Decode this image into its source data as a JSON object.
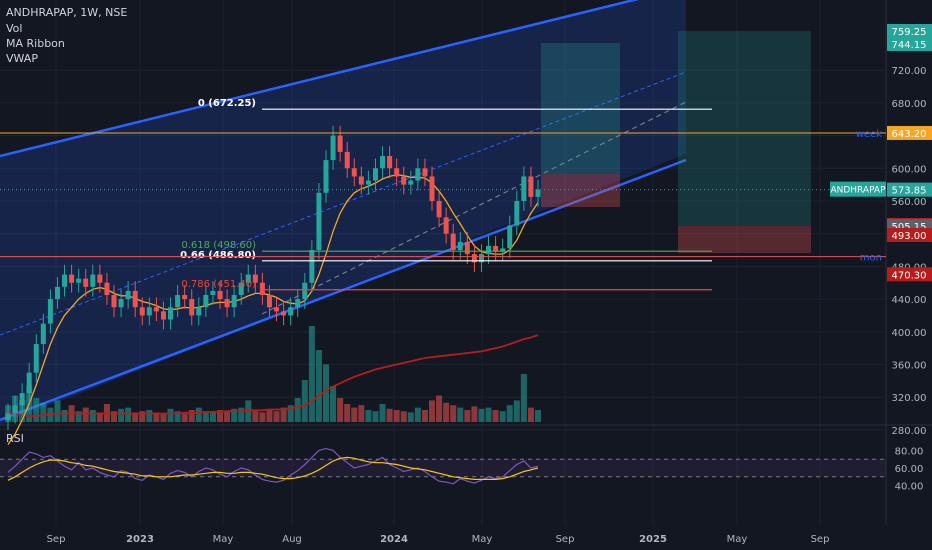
{
  "header": {
    "symbol_line": "ANDHRAPAP, 1W, NSE",
    "indicators": [
      "Vol",
      "MA Ribbon",
      "VWAP"
    ]
  },
  "rsi_pane": {
    "label": "RSI",
    "ticks": [
      80.0,
      60.0,
      40.0
    ],
    "upper_band": 70,
    "lower_band": 50
  },
  "colors": {
    "background": "#131722",
    "up": "#26a69a",
    "down": "#ef5350",
    "channel": "#2962ff",
    "ma": "#f5a623",
    "vwap_ribbon": "#b71c1c",
    "rsi": "#7e57c2"
  },
  "chart_data": {
    "type": "candlestick",
    "x_ticks": [
      "Sep",
      "2023",
      "May",
      "Aug",
      "2024",
      "May",
      "Sep",
      "2025",
      "May",
      "Sep"
    ],
    "y_ticks": [
      280.0,
      320.0,
      360.0,
      400.0,
      440.0,
      480.0,
      520.0,
      560.0,
      600.0,
      640.0,
      680.0,
      720.0
    ],
    "ylim": [
      255,
      775
    ],
    "last_price_label": "ANDHRAPAP",
    "price_labels": [
      {
        "text": "759.25",
        "value": 759.25,
        "color": "#26a69a"
      },
      {
        "text": "744.15",
        "value": 744.15,
        "color": "#26a69a"
      },
      {
        "text": "643.20",
        "value": 643.2,
        "color": "#f5a623"
      },
      {
        "text": "573.85",
        "value": 573.85,
        "color": "#26a69a"
      },
      {
        "text": "530.65",
        "value": 530.65,
        "color": "#b71c1c"
      },
      {
        "text": "505.15",
        "value": 505.15,
        "color": "#5d606b"
      },
      {
        "text": "493.00",
        "value": 493.0,
        "color": "#b71c1c"
      },
      {
        "text": "470.30",
        "value": 470.3,
        "color": "#b71c1c"
      }
    ],
    "fib_levels": [
      {
        "text": "0 (672.25)",
        "value": 672.25,
        "color": "#ffffff"
      },
      {
        "text": "0.618 (498.60)",
        "value": 498.6,
        "color": "#4caf50"
      },
      {
        "text": "0.66 (486.80)",
        "value": 486.8,
        "color": "#ffffff"
      },
      {
        "text": "0.786 (451.40)",
        "value": 451.4,
        "color": "#f44336"
      }
    ],
    "horizontal_lines": [
      {
        "text": "week",
        "value": 643.2,
        "color": "#f5a623"
      },
      {
        "text": "mon",
        "value": 492.0,
        "color": "#ef5350"
      }
    ],
    "close_series": [
      300,
      310,
      325,
      350,
      385,
      410,
      440,
      455,
      470,
      460,
      465,
      455,
      470,
      460,
      445,
      430,
      440,
      450,
      430,
      420,
      430,
      425,
      415,
      430,
      445,
      440,
      420,
      430,
      445,
      450,
      440,
      430,
      445,
      460,
      470,
      460,
      445,
      430,
      425,
      420,
      430,
      440,
      460,
      500,
      570,
      610,
      640,
      620,
      600,
      590,
      580,
      585,
      600,
      615,
      600,
      590,
      580,
      585,
      600,
      590,
      560,
      540,
      520,
      500,
      510,
      495,
      485,
      495,
      505,
      498,
      502,
      530,
      560,
      590,
      565,
      574
    ],
    "ma_series": [
      262,
      275,
      292,
      312,
      335,
      360,
      385,
      405,
      420,
      430,
      440,
      447,
      452,
      454,
      452,
      447,
      444,
      444,
      441,
      437,
      435,
      432,
      428,
      427,
      428,
      430,
      429,
      430,
      432,
      435,
      436,
      436,
      437,
      440,
      444,
      447,
      447,
      445,
      442,
      437,
      435,
      434,
      438,
      450,
      470,
      495,
      523,
      545,
      560,
      570,
      575,
      578,
      582,
      587,
      590,
      592,
      591,
      589,
      589,
      588,
      582,
      572,
      560,
      545,
      532,
      518,
      505,
      498,
      496,
      495,
      495,
      500,
      512,
      530,
      545,
      558
    ],
    "vwap_series": [
      302,
      300,
      298,
      297,
      297,
      298,
      299,
      300,
      300,
      300,
      300,
      300,
      300,
      300,
      300,
      300,
      300,
      300,
      300,
      300,
      300,
      300,
      300,
      300,
      300,
      301,
      301,
      301,
      302,
      302,
      302,
      303,
      303,
      303,
      304,
      304,
      304,
      305,
      305,
      305,
      306,
      308,
      310,
      315,
      322,
      328,
      333,
      337,
      341,
      345,
      348,
      351,
      354,
      356,
      358,
      360,
      362,
      364,
      366,
      368,
      369,
      370,
      371,
      372,
      373,
      374,
      375,
      376,
      378,
      380,
      382,
      385,
      388,
      391,
      393,
      396
    ],
    "rsi_series": [
      55,
      62,
      70,
      78,
      76,
      72,
      74,
      68,
      62,
      58,
      66,
      58,
      60,
      55,
      52,
      50,
      57,
      55,
      48,
      46,
      52,
      50,
      47,
      54,
      57,
      55,
      50,
      56,
      60,
      58,
      53,
      50,
      56,
      60,
      58,
      52,
      47,
      45,
      44,
      46,
      52,
      57,
      64,
      72,
      80,
      82,
      80,
      72,
      66,
      60,
      62,
      64,
      68,
      72,
      64,
      60,
      56,
      58,
      60,
      56,
      50,
      45,
      44,
      42,
      48,
      45,
      43,
      46,
      50,
      48,
      50,
      57,
      64,
      68,
      60,
      62
    ],
    "rsi_ma_series": [
      46,
      50,
      55,
      60,
      64,
      67,
      69,
      69,
      68,
      66,
      65,
      63,
      62,
      60,
      58,
      56,
      55,
      54,
      53,
      51,
      51,
      50,
      50,
      50,
      51,
      52,
      52,
      53,
      54,
      55,
      55,
      54,
      54,
      55,
      55,
      54,
      53,
      51,
      49,
      48,
      48,
      49,
      51,
      54,
      58,
      63,
      68,
      71,
      72,
      71,
      69,
      67,
      66,
      66,
      65,
      64,
      62,
      60,
      59,
      58,
      56,
      54,
      52,
      50,
      49,
      48,
      47,
      47,
      47,
      47,
      48,
      50,
      53,
      56,
      58,
      60
    ],
    "volume_series": [
      14,
      22,
      18,
      30,
      20,
      16,
      12,
      18,
      10,
      14,
      9,
      12,
      10,
      8,
      15,
      9,
      11,
      12,
      8,
      9,
      10,
      8,
      7,
      11,
      9,
      8,
      10,
      12,
      9,
      8,
      10,
      9,
      11,
      12,
      18,
      9,
      8,
      10,
      9,
      12,
      14,
      20,
      35,
      80,
      60,
      48,
      30,
      20,
      15,
      12,
      14,
      10,
      9,
      15,
      11,
      10,
      9,
      8,
      12,
      10,
      18,
      22,
      16,
      14,
      12,
      10,
      13,
      11,
      12,
      10,
      9,
      14,
      18,
      40,
      12,
      10
    ]
  }
}
